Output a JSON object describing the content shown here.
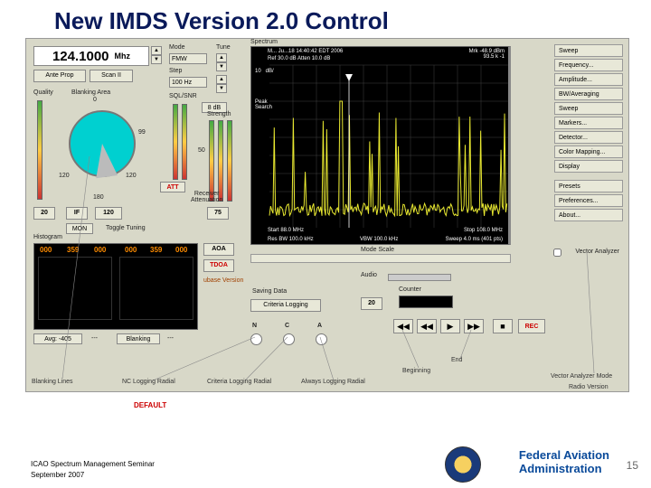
{
  "slide": {
    "title": "New IMDS Version 2.0 Control",
    "page_num": "15"
  },
  "footer": {
    "line1": "ICAO Spectrum Management Seminar",
    "line2": "September 2007",
    "agency1": "Federal Aviation",
    "agency2": "Administration"
  },
  "freq": {
    "value": "124.1000",
    "unit": "Mhz"
  },
  "top_btns": {
    "ante": "Ante Prop",
    "scan": "Scan II"
  },
  "mode": {
    "label": "Mode",
    "value": "FMW",
    "tune_label": "Tune",
    "step_label": "Step",
    "step_value": "100 Hz"
  },
  "squelch": {
    "quality": "Quality",
    "blank": "Blanking Area",
    "sql": "SQL/SNR",
    "db": "8 dB"
  },
  "dial": {
    "t180": "180",
    "t120": "120",
    "t99": "99",
    "t60": "60",
    "t50": "50",
    "att_btn": "ATT",
    "recv_atten": "Receiver\nAttenuation"
  },
  "num_btns": {
    "n20": "20",
    "nIF": "IF",
    "n120": "120",
    "n75": "75",
    "mon": "MON",
    "tuning": "Toggle Tuning"
  },
  "hist": {
    "label": "Histogram",
    "h000a": "000",
    "h359a": "359",
    "h000b": "000",
    "h000c": "000",
    "h359b": "359",
    "h000d": "000",
    "avg": "Avg: -405",
    "blank": "Blanking",
    "dashes": "---"
  },
  "aoa": {
    "aoa": "AOA",
    "tdoa": "TDOA",
    "ubase": "ubase Version"
  },
  "spectrum": {
    "title_line": "Spectrum",
    "top1": "M... Ju...18 14:40:42 EDT 2006",
    "top2": "Ref 30.0 dB                    Atten 10.0 dB",
    "top3": "10   dB/",
    "mrk": "Mrk -48.9 dBm\n93.5 k -1",
    "peak": "Peak\nSearch",
    "start": "Start 88.0 MHz",
    "stop": "Stop 108.0 MHz",
    "res": "Res BW 100.0 kHz",
    "vbw": "VBW 100.0 kHz",
    "sweep": "Sweep 4.0 ms (401 pts)",
    "mode_scale": "Mode Scale",
    "bg": "#000000",
    "trace_color": "#e8e830",
    "grid_color": "#404040",
    "xpoints": 200,
    "ymin": -100,
    "ymax": -20
  },
  "side": {
    "b1": "Sweep",
    "b2": "Frequency...",
    "b3": "Amplitude...",
    "b4": "BW/Averaging",
    "b5": "Sweep",
    "b6": "Markers...",
    "b7": "Detector...",
    "b8": "Color Mapping...",
    "b9": "Display",
    "b10": "Presets",
    "b11": "Preferences...",
    "b12": "About...",
    "va": "Vector Analyzer"
  },
  "saving": {
    "label": "Saving Data",
    "btn": "Criteria Logging"
  },
  "audio": {
    "label": "Audio",
    "slider": "slider",
    "n20": "20",
    "counter": "Counter",
    "n": "N",
    "c": "C",
    "a": "A"
  },
  "transport": {
    "rew": "◀◀",
    "back": "◀◀",
    "play": "▶",
    "fwd": "▶▶",
    "stop": "■",
    "rec": "REC"
  },
  "callouts": {
    "c1": "Blanking Lines",
    "c2": "NC Logging Radial",
    "c3": "Criteria Logging Radial",
    "c4": "Always Logging Radial",
    "c5": "Beginning",
    "c6": "End",
    "c7": "Vector Analyzer Mode",
    "c8": "Radio Version",
    "default": "DEFAULT"
  }
}
